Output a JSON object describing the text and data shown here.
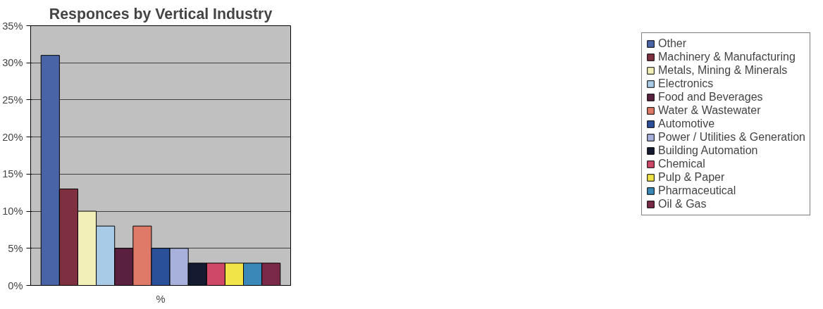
{
  "chart_data": {
    "type": "bar",
    "title": "Responces by Vertical Industry",
    "categories": [
      "%"
    ],
    "series": [
      {
        "name": "Other",
        "color": "#4a64a8",
        "values": [
          31
        ]
      },
      {
        "name": "Machinery & Manufacturing",
        "color": "#7f3040",
        "values": [
          13
        ]
      },
      {
        "name": "Metals, Mining & Minerals",
        "color": "#f2f0b8",
        "values": [
          10
        ]
      },
      {
        "name": "Electronics",
        "color": "#a8cce8",
        "values": [
          8
        ]
      },
      {
        "name": "Food and Beverages",
        "color": "#5a2040",
        "values": [
          5
        ]
      },
      {
        "name": "Water & Wastewater",
        "color": "#e07a68",
        "values": [
          8
        ]
      },
      {
        "name": "Automotive",
        "color": "#2a509a",
        "values": [
          5
        ]
      },
      {
        "name": "Power / Utilities & Generation",
        "color": "#a8b0dc",
        "values": [
          5
        ]
      },
      {
        "name": "Building Automation",
        "color": "#141a30",
        "values": [
          3
        ]
      },
      {
        "name": "Chemical",
        "color": "#d04868",
        "values": [
          3
        ]
      },
      {
        "name": "Pulp & Paper",
        "color": "#f0e448",
        "values": [
          3
        ]
      },
      {
        "name": "Pharmaceutical",
        "color": "#3a88b8",
        "values": [
          3
        ]
      },
      {
        "name": "Oil & Gas",
        "color": "#7a2a48",
        "values": [
          3
        ]
      }
    ],
    "ylim": [
      0,
      35
    ],
    "yticks": [
      {
        "value": 0,
        "label": "0%"
      },
      {
        "value": 5,
        "label": "5%"
      },
      {
        "value": 10,
        "label": "10%"
      },
      {
        "value": 15,
        "label": "15%"
      },
      {
        "value": 20,
        "label": "20%"
      },
      {
        "value": 25,
        "label": "25%"
      },
      {
        "value": 30,
        "label": "30%"
      },
      {
        "value": 35,
        "label": "35%"
      }
    ],
    "grid": "y",
    "legend": "right"
  }
}
